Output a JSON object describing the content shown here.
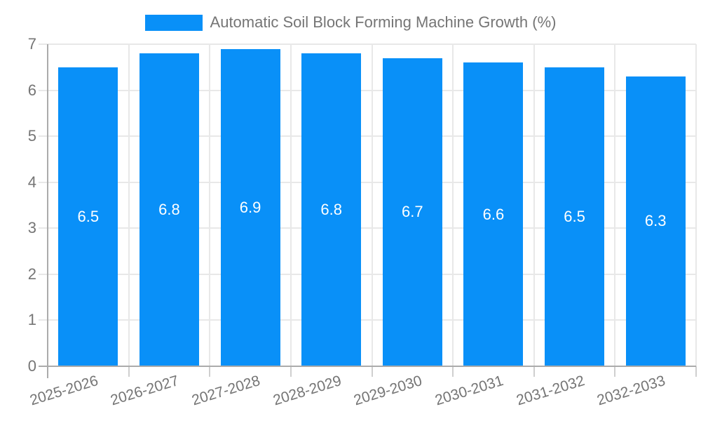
{
  "chart_data": {
    "type": "bar",
    "title": "Automatic Soil Block Forming Machine Growth (%)",
    "legend": {
      "label": "Automatic Soil Block Forming Machine Growth (%)",
      "position": "top"
    },
    "categories": [
      "2025-2026",
      "2026-2027",
      "2027-2028",
      "2028-2029",
      "2029-2030",
      "2030-2031",
      "2031-2032",
      "2032-2033"
    ],
    "values": [
      6.5,
      6.8,
      6.9,
      6.8,
      6.7,
      6.6,
      6.5,
      6.3
    ],
    "value_labels": [
      "6.5",
      "6.8",
      "6.9",
      "6.8",
      "6.7",
      "6.6",
      "6.5",
      "6.3"
    ],
    "xlabel": "",
    "ylabel": "",
    "ylim": [
      0,
      7
    ],
    "yticks": [
      0,
      1,
      2,
      3,
      4,
      5,
      6,
      7
    ],
    "grid": true,
    "colors": {
      "bar": "#0990F8",
      "grid": "#E8E8E8",
      "axis": "#ABABAB",
      "minor_tick": "#CFCFCF",
      "tick_text": "#757575",
      "bar_label": "#FFFFFF",
      "legend_text": "#757575",
      "background": "#FFFFFF"
    }
  }
}
